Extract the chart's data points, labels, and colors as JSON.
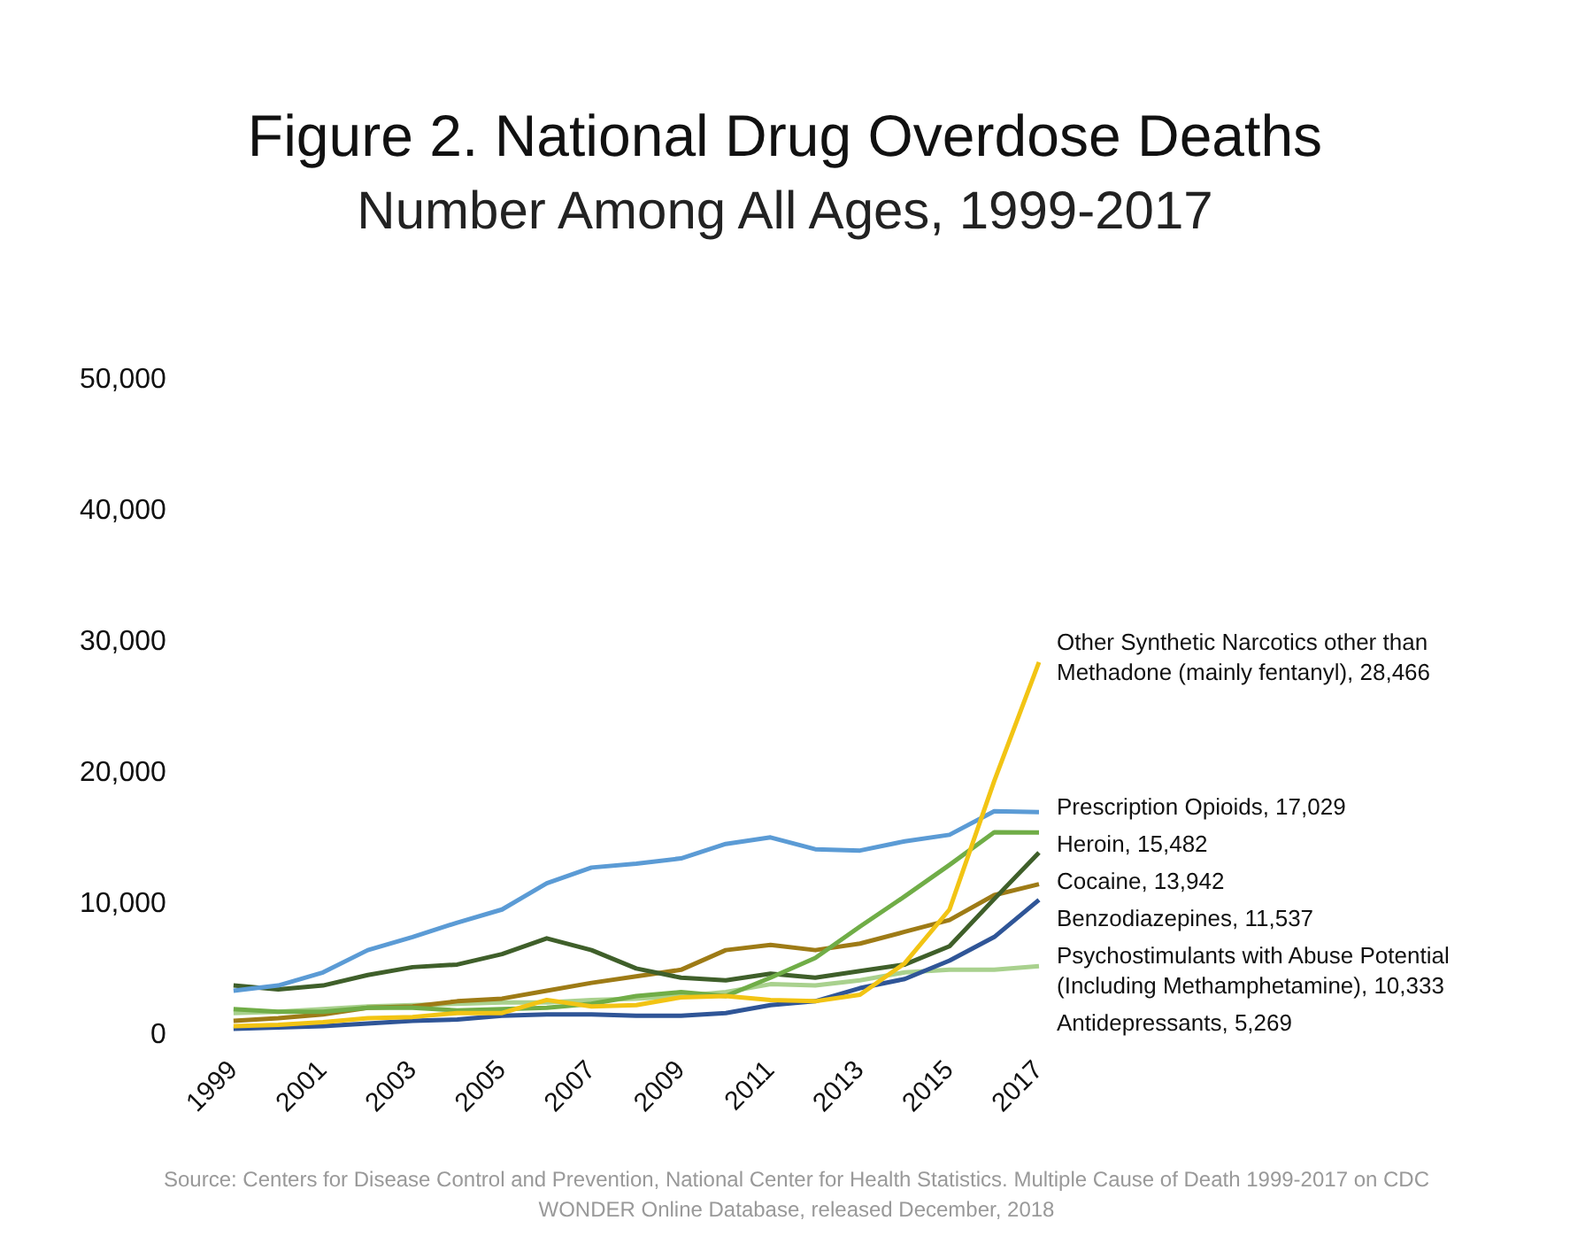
{
  "chart_data": {
    "type": "line",
    "title": "Figure 2. National Drug Overdose Deaths",
    "subtitle": "Number Among All Ages, 1999-2017",
    "categories": [
      "1999",
      null,
      "2001",
      null,
      "2003",
      null,
      "2005",
      null,
      "2007",
      null,
      "2009",
      null,
      "2011",
      null,
      "2013",
      null,
      "2015",
      null,
      "2017"
    ],
    "series": [
      {
        "name": "Other Synthetic Narcotics other than Methadone (mainly fentanyl), 28,466",
        "color": "#f2c414",
        "values": [
          700,
          800,
          1000,
          1300,
          1400,
          1700,
          1700,
          2700,
          2200,
          2300,
          2900,
          3000,
          2700,
          2600,
          3100,
          5500,
          9600,
          19400,
          28466
        ]
      },
      {
        "name": "Prescription Opioids, 17,029",
        "color": "#5b9bd5",
        "values": [
          3400,
          3800,
          4800,
          6500,
          7500,
          8600,
          9600,
          11600,
          12800,
          13100,
          13500,
          14600,
          15100,
          14200,
          14100,
          14800,
          15300,
          17100,
          17029
        ]
      },
      {
        "name": "Heroin, 15,482",
        "color": "#70ad47",
        "values": [
          2000,
          1800,
          1800,
          2100,
          2100,
          1900,
          2000,
          2100,
          2400,
          3000,
          3300,
          3000,
          4400,
          5900,
          8300,
          10600,
          13000,
          15500,
          15482
        ]
      },
      {
        "name": "Cocaine, 13,942",
        "color": "#3f5f2a",
        "values": [
          3800,
          3500,
          3800,
          4600,
          5200,
          5400,
          6200,
          7400,
          6500,
          5100,
          4400,
          4200,
          4700,
          4400,
          4900,
          5400,
          6800,
          10400,
          13942
        ]
      },
      {
        "name": "Benzodiazepines, 11,537",
        "color": "#9e7b16",
        "values": [
          1100,
          1300,
          1600,
          2100,
          2200,
          2600,
          2800,
          3400,
          4000,
          4500,
          5000,
          6500,
          6900,
          6500,
          7000,
          7900,
          8800,
          10700,
          11537
        ]
      },
      {
        "name": "Psychostimulants with Abuse Potential (Including Methamphetamine), 10,333",
        "color": "#2f5597",
        "values": [
          500,
          600,
          700,
          900,
          1100,
          1200,
          1500,
          1600,
          1600,
          1500,
          1500,
          1700,
          2300,
          2600,
          3600,
          4300,
          5700,
          7500,
          10333
        ]
      },
      {
        "name": "Antidepressants, 5,269",
        "color": "#a9d18e",
        "values": [
          1700,
          1800,
          2000,
          2200,
          2300,
          2400,
          2500,
          2500,
          2700,
          2800,
          3000,
          3300,
          3900,
          3800,
          4200,
          4800,
          5000,
          5000,
          5269
        ]
      }
    ],
    "ylim": [
      0,
      50000
    ],
    "yticks": [
      {
        "value": 0,
        "label": "0"
      },
      {
        "value": 10000,
        "label": "10,000"
      },
      {
        "value": 20000,
        "label": "20,000"
      },
      {
        "value": 30000,
        "label": "30,000"
      },
      {
        "value": 40000,
        "label": "40,000"
      },
      {
        "value": 50000,
        "label": "50,000"
      }
    ],
    "grid": false,
    "legend": false,
    "annotations": [
      "Source: Centers for Disease Control and Prevention, National Center for Health Statistics. Multiple Cause of Death 1999-2017 on CDC WONDER Online Database, released December, 2018"
    ]
  }
}
